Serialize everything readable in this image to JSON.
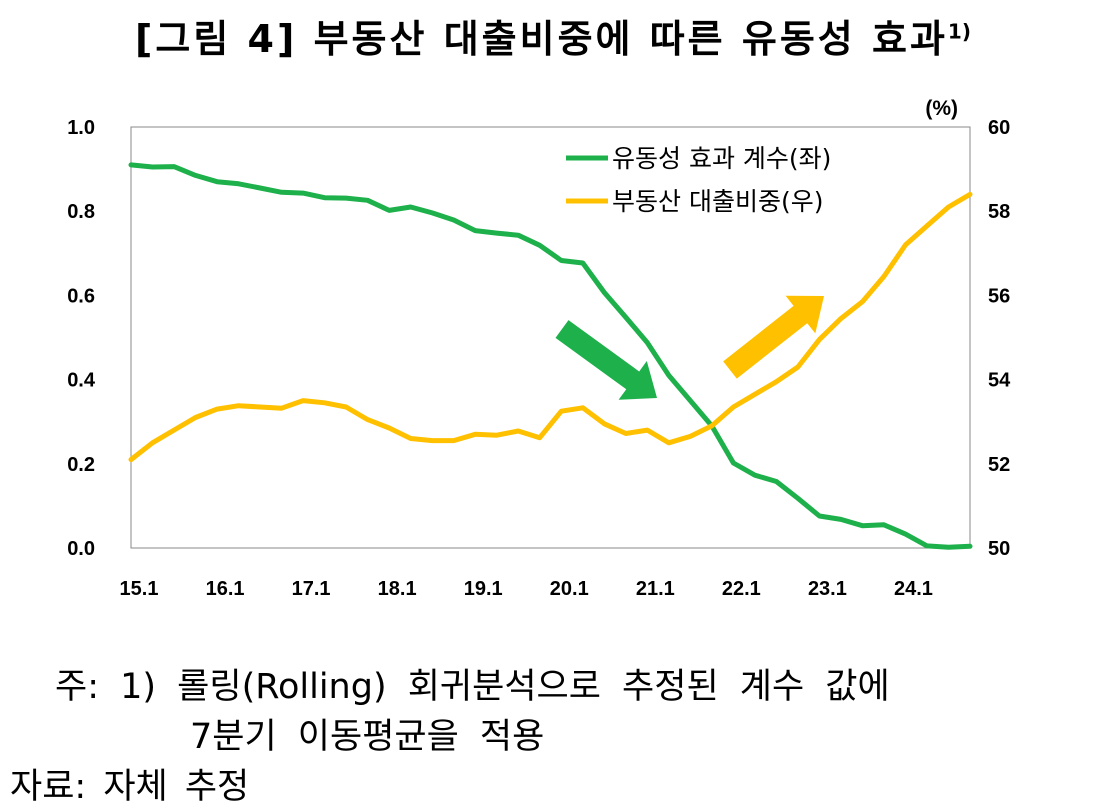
{
  "title": {
    "main": "[그림 4] 부동산 대출비중에 따른 유동성 효과",
    "footnote_mark": "1)"
  },
  "notes": {
    "line1": "주: 1) 롤링(Rolling) 회귀분석으로 추정된 계수 값에",
    "line2": "7분기 이동평균을 적용",
    "source": "자료: 자체 추정"
  },
  "chart_data": {
    "type": "line",
    "unit_label_right": "(%)",
    "x_tick_labels": [
      "15.1",
      "16.1",
      "17.1",
      "18.1",
      "19.1",
      "20.1",
      "21.1",
      "22.1",
      "23.1",
      "24.1"
    ],
    "x_start": 2015.0,
    "x_end": 2024.75,
    "x_step": 0.25,
    "y_left": {
      "min": 0.0,
      "max": 1.0,
      "ticks": [
        "0.0",
        "0.2",
        "0.4",
        "0.6",
        "0.8",
        "1.0"
      ]
    },
    "y_right": {
      "min": 50,
      "max": 60,
      "ticks": [
        "50",
        "52",
        "54",
        "56",
        "58",
        "60"
      ]
    },
    "series": [
      {
        "name": "유동성 효과 계수(좌)",
        "axis": "left",
        "color": "#1DB04B",
        "values": [
          0.91,
          0.905,
          0.906,
          0.885,
          0.87,
          0.865,
          0.855,
          0.845,
          0.843,
          0.832,
          0.831,
          0.826,
          0.802,
          0.81,
          0.796,
          0.779,
          0.754,
          0.748,
          0.743,
          0.719,
          0.683,
          0.677,
          0.607,
          0.548,
          0.488,
          0.41,
          0.35,
          0.29,
          0.202,
          0.173,
          0.158,
          0.118,
          0.076,
          0.068,
          0.053,
          0.055,
          0.033,
          0.005,
          0.002,
          0.004
        ]
      },
      {
        "name": "부동산 대출비중(우)",
        "axis": "right",
        "color": "#FFC000",
        "values": [
          52.1,
          52.5,
          52.8,
          53.1,
          53.3,
          53.38,
          53.35,
          53.32,
          53.5,
          53.45,
          53.35,
          53.05,
          52.85,
          52.6,
          52.55,
          52.55,
          52.7,
          52.68,
          52.78,
          52.62,
          53.25,
          53.33,
          52.95,
          52.72,
          52.8,
          52.5,
          52.65,
          52.9,
          53.35,
          53.65,
          53.95,
          54.3,
          54.95,
          55.45,
          55.85,
          56.45,
          57.2,
          57.65,
          58.1,
          58.4
        ]
      }
    ],
    "arrows": [
      {
        "color": "#1DB04B",
        "direction": "down-right"
      },
      {
        "color": "#FFC000",
        "direction": "up-right"
      }
    ]
  }
}
